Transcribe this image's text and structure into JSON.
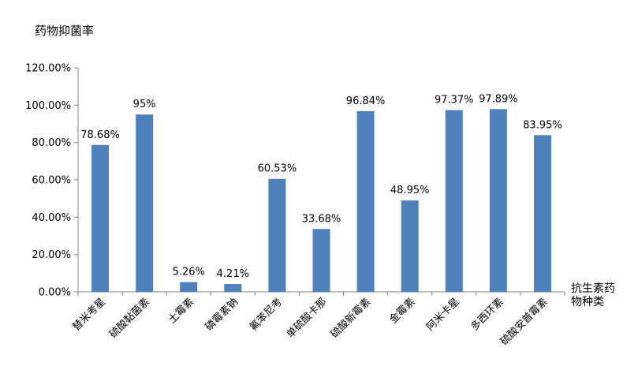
{
  "chart_data": {
    "type": "bar",
    "ylabel": "药物抑菌率",
    "xlabel_line1": "抗生素药",
    "xlabel_line2": "物种类",
    "categories": [
      "替米考星",
      "硫酸黏菌素",
      "土霉素",
      "磷霉素钠",
      "氟苯尼考",
      "单硫酸卡那",
      "硫酸新霉素",
      "金霉素",
      "阿米卡星",
      "多西环素",
      "硫酸安普霉素"
    ],
    "values": [
      78.68,
      95,
      5.26,
      4.21,
      60.53,
      33.68,
      96.84,
      48.95,
      97.37,
      97.89,
      83.95
    ],
    "data_labels": [
      "78.68%",
      "95%",
      "5.26%",
      "4.21%",
      "60.53%",
      "33.68%",
      "96.84%",
      "48.95%",
      "97.37%",
      "97.89%",
      "83.95%"
    ],
    "yticks": [
      "0.00%",
      "20.00%",
      "40.00%",
      "60.00%",
      "80.00%",
      "100.00%",
      "120.00%"
    ],
    "ylim": [
      0,
      120
    ],
    "bar_color": "#4F81BD",
    "grid": false
  }
}
